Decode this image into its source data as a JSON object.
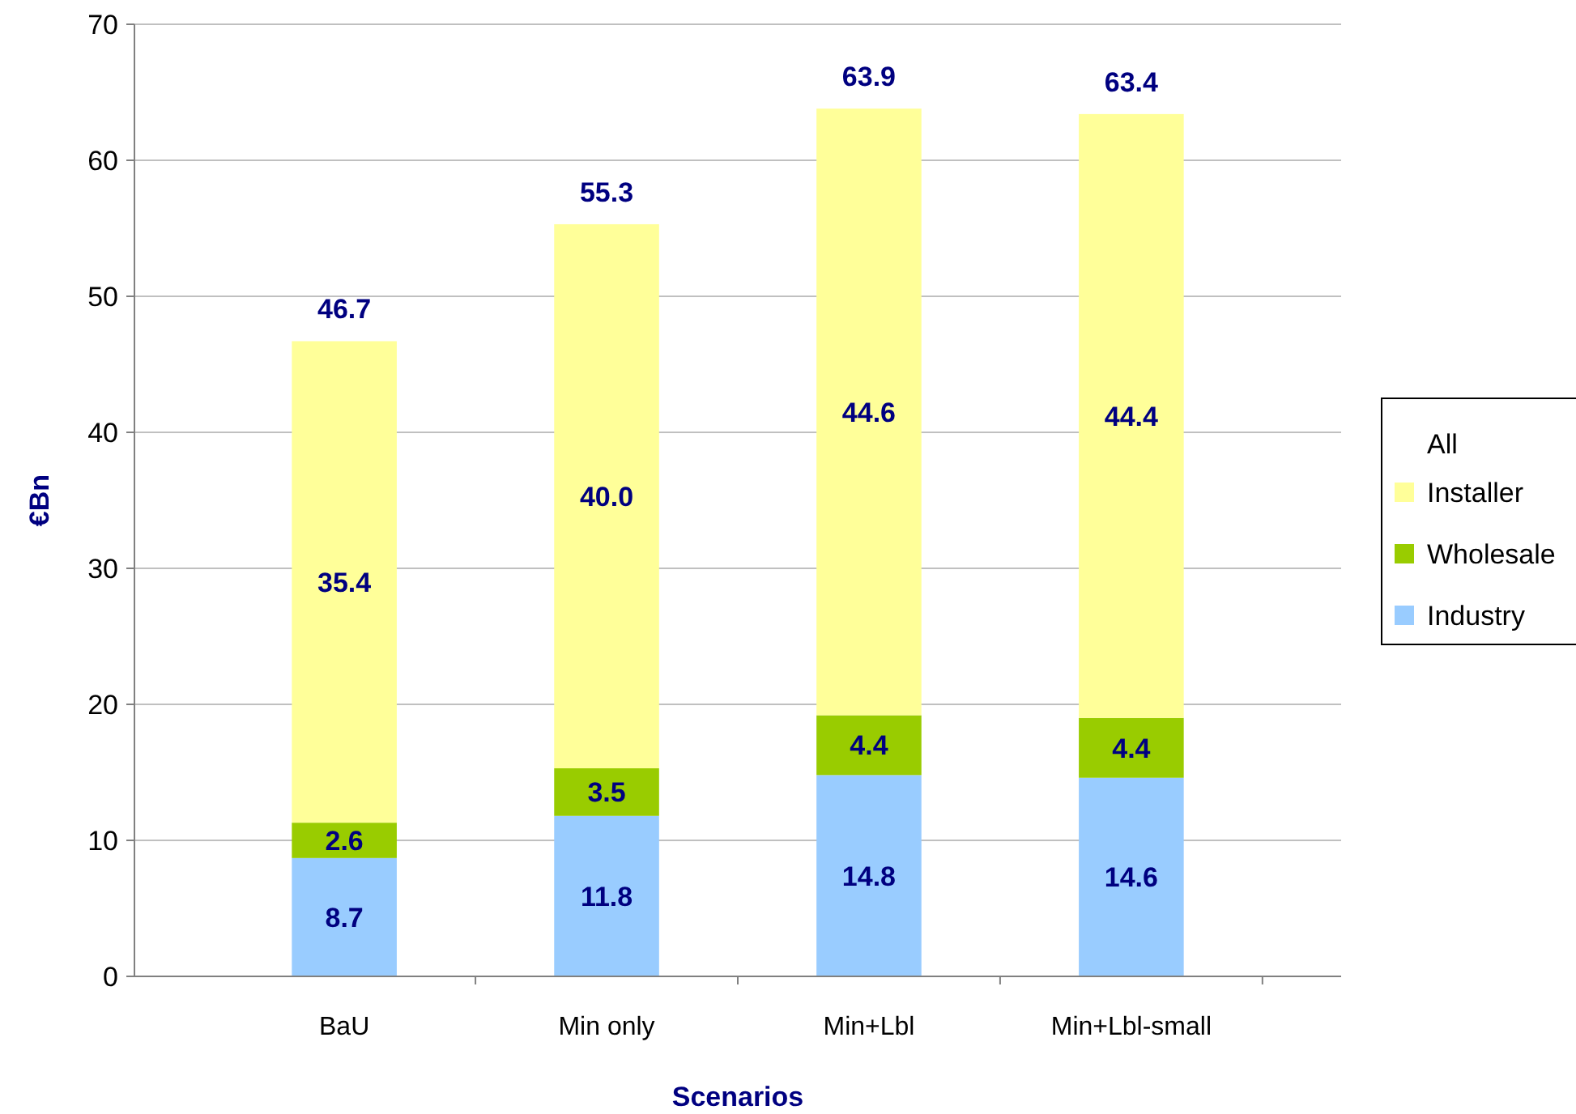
{
  "chart_data": {
    "type": "bar",
    "stacked": true,
    "xlabel": "Scenarios",
    "ylabel": "€Bn",
    "legend_title": "All",
    "categories": [
      "BaU",
      "Min only",
      "Min+Lbl",
      "Min+Lbl-small"
    ],
    "series": [
      {
        "name": "Industry",
        "color": "#99ccff",
        "values": [
          8.7,
          11.8,
          14.8,
          14.6
        ],
        "value_labels": [
          "8.7",
          "11.8",
          "14.8",
          "14.6"
        ]
      },
      {
        "name": "Wholesale",
        "color": "#99cc00",
        "values": [
          2.6,
          3.5,
          4.4,
          4.4
        ],
        "value_labels": [
          "2.6",
          "3.5",
          "4.4",
          "4.4"
        ]
      },
      {
        "name": "Installer",
        "color": "#ffff99",
        "values": [
          35.4,
          40.0,
          44.6,
          44.4
        ],
        "value_labels": [
          "35.4",
          "40.0",
          "44.6",
          "44.4"
        ]
      }
    ],
    "totals": [
      "46.7",
      "55.3",
      "63.9",
      "63.4"
    ],
    "ylim": [
      0,
      70
    ],
    "yticks": [
      0,
      10,
      20,
      30,
      40,
      50,
      60,
      70
    ],
    "grid": "y",
    "legend": "right"
  }
}
